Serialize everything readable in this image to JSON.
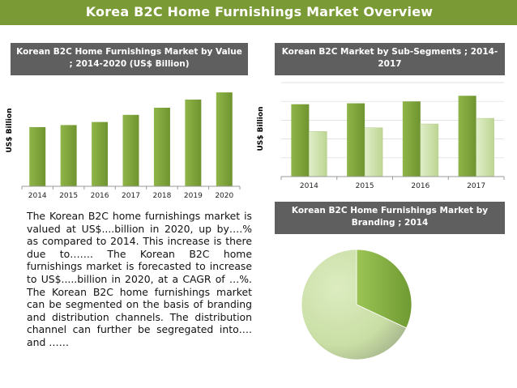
{
  "header": {
    "title": "Korea B2C Home Furnishings Market Overview"
  },
  "paragraph": "The Korean B2C home furnishings market is valued at US$....billion in 2020, up by….% as compared to 2014. This increase is there due to……. The Korean B2C home furnishings market is forecasted to increase to US$.....billion in 2020, at a CAGR of …%. The Korean B2C home furnishings market can be segmented on the basis of branding and distribution channels. The distribution channel can further be segregated into…. and ……",
  "chart_data": [
    {
      "type": "bar",
      "title": "Korean B2C Home Furnishings Market by Value ; 2014-2020 (US$ Billion)",
      "xlabel": "",
      "ylabel": "US$ Billion",
      "categories": [
        "2014",
        "2015",
        "2016",
        "2017",
        "2018",
        "2019",
        "2020"
      ],
      "values": [
        5.8,
        6.0,
        6.3,
        7.0,
        7.7,
        8.5,
        9.2
      ],
      "ylim": [
        0,
        10
      ],
      "colors": {
        "bar": "#7fa33a",
        "bar_light": "#a8c85a"
      },
      "grid": false
    },
    {
      "type": "bar",
      "title": "Korean B2C Market by Sub-Segments ; 2014-2017",
      "xlabel": "",
      "ylabel": "US$ Billion",
      "categories": [
        "2014",
        "2015",
        "2016",
        "2017"
      ],
      "series": [
        {
          "values": [
            7.7,
            7.8,
            8.0,
            8.6
          ],
          "color": "#7fa33a"
        },
        {
          "values": [
            4.8,
            5.2,
            5.6,
            6.2
          ],
          "color": "#d4e6b0"
        }
      ],
      "ylim": [
        0,
        10
      ],
      "grid": true
    },
    {
      "type": "pie",
      "title": "Korean B2C Home Furnishings Market by Branding ; 2014",
      "values": [
        32,
        68
      ],
      "colors": [
        "#8ab545",
        "#d0e4ae"
      ]
    }
  ]
}
